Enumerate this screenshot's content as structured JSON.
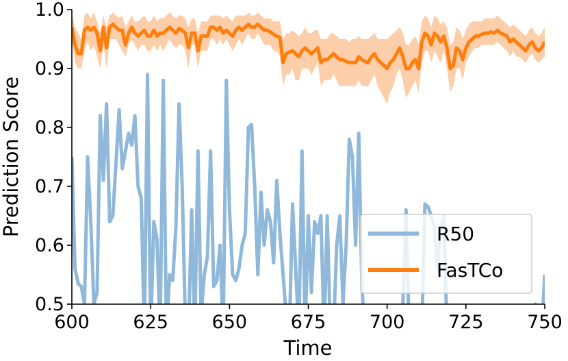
{
  "chart_data": {
    "type": "line",
    "title": "",
    "xlabel": "Time",
    "ylabel": "Prediction Score",
    "xlim": [
      600,
      750
    ],
    "ylim": [
      0.5,
      1.0
    ],
    "xticks": [
      600,
      625,
      650,
      675,
      700,
      725,
      750
    ],
    "yticks": [
      0.5,
      0.6,
      0.7,
      0.8,
      0.9,
      1.0
    ],
    "xtick_labels": [
      "600",
      "625",
      "650",
      "675",
      "700",
      "725",
      "750"
    ],
    "ytick_labels": [
      "0.5",
      "0.6",
      "0.7",
      "0.8",
      "0.9",
      "1.0"
    ],
    "grid": false,
    "legend_position": "lower-right",
    "series": [
      {
        "name": "R50",
        "color": "#8fb8da",
        "x": [
          600,
          601,
          602,
          603,
          604,
          605,
          606,
          607,
          608,
          609,
          610,
          611,
          612,
          613,
          614,
          615,
          616,
          617,
          618,
          619,
          620,
          621,
          622,
          623,
          624,
          625,
          626,
          627,
          628,
          629,
          630,
          631,
          632,
          633,
          634,
          635,
          636,
          637,
          638,
          639,
          640,
          641,
          642,
          643,
          644,
          645,
          646,
          647,
          648,
          649,
          650,
          651,
          652,
          653,
          654,
          655,
          656,
          657,
          658,
          659,
          660,
          661,
          662,
          663,
          664,
          665,
          666,
          667,
          668,
          669,
          670,
          671,
          672,
          673,
          674,
          675,
          676,
          677,
          678,
          679,
          680,
          681,
          682,
          683,
          684,
          685,
          686,
          687,
          688,
          689,
          690,
          691,
          692,
          693,
          694,
          695,
          696,
          697,
          698,
          699,
          700,
          701,
          702,
          703,
          704,
          705,
          706,
          707,
          708,
          709,
          710,
          711,
          712,
          713,
          714,
          715,
          716,
          717,
          718,
          719,
          720,
          721,
          722,
          723,
          724,
          725,
          726,
          727,
          728,
          729,
          730,
          731,
          732,
          733,
          734,
          735,
          736,
          737,
          738,
          739,
          740,
          741,
          742,
          743,
          744,
          745,
          746,
          747,
          748,
          749,
          750
        ],
        "values": [
          0.75,
          0.56,
          0.535,
          0.53,
          0.5,
          0.75,
          0.64,
          0.5,
          0.52,
          0.82,
          0.71,
          0.84,
          0.64,
          0.65,
          0.74,
          0.83,
          0.73,
          0.76,
          0.79,
          0.77,
          0.82,
          0.7,
          0.68,
          0.45,
          0.89,
          0.45,
          0.64,
          0.61,
          0.45,
          0.88,
          0.45,
          0.55,
          0.54,
          0.63,
          0.84,
          0.7,
          0.47,
          0.45,
          0.66,
          0.45,
          0.76,
          0.48,
          0.55,
          0.58,
          0.76,
          0.53,
          0.54,
          0.6,
          0.45,
          0.88,
          0.66,
          0.55,
          0.54,
          0.56,
          0.6,
          0.62,
          0.8,
          0.805,
          0.7,
          0.55,
          0.69,
          0.6,
          0.66,
          0.64,
          0.57,
          0.71,
          0.62,
          0.55,
          0.48,
          0.45,
          0.67,
          0.56,
          0.45,
          0.76,
          0.45,
          0.65,
          0.52,
          0.64,
          0.62,
          0.65,
          0.45,
          0.65,
          0.45,
          0.45,
          0.6,
          0.65,
          0.5,
          0.6,
          0.78,
          0.75,
          0.6,
          0.79,
          0.53,
          0.45,
          0.45,
          0.45,
          0.45,
          0.45,
          0.45,
          0.45,
          0.45,
          0.45,
          0.45,
          0.45,
          0.45,
          0.5,
          0.66,
          0.45,
          0.45,
          0.45,
          0.45,
          0.45,
          0.67,
          0.665,
          0.65,
          0.63,
          0.56,
          0.63,
          0.65,
          0.45,
          0.45,
          0.45,
          0.45,
          0.45,
          0.45,
          0.45,
          0.45,
          0.45,
          0.45,
          0.45,
          0.45,
          0.45,
          0.45,
          0.45,
          0.45,
          0.45,
          0.45,
          0.45,
          0.45,
          0.45,
          0.45,
          0.45,
          0.45,
          0.45,
          0.45,
          0.45,
          0.45,
          0.5,
          0.45,
          0.45,
          0.55
        ]
      },
      {
        "name": "FasTCo",
        "color": "#ff7f0e",
        "band_color": "#fcc59a",
        "x": [
          600,
          601,
          602,
          603,
          604,
          605,
          606,
          607,
          608,
          609,
          610,
          611,
          612,
          613,
          614,
          615,
          616,
          617,
          618,
          619,
          620,
          621,
          622,
          623,
          624,
          625,
          626,
          627,
          628,
          629,
          630,
          631,
          632,
          633,
          634,
          635,
          636,
          637,
          638,
          639,
          640,
          641,
          642,
          643,
          644,
          645,
          646,
          647,
          648,
          649,
          650,
          651,
          652,
          653,
          654,
          655,
          656,
          657,
          658,
          659,
          660,
          661,
          662,
          663,
          664,
          665,
          666,
          667,
          668,
          669,
          670,
          671,
          672,
          673,
          674,
          675,
          676,
          677,
          678,
          679,
          680,
          681,
          682,
          683,
          684,
          685,
          686,
          687,
          688,
          689,
          690,
          691,
          692,
          693,
          694,
          695,
          696,
          697,
          698,
          699,
          700,
          701,
          702,
          703,
          704,
          705,
          706,
          707,
          708,
          709,
          710,
          711,
          712,
          713,
          714,
          715,
          716,
          717,
          718,
          719,
          720,
          721,
          722,
          723,
          724,
          725,
          726,
          727,
          728,
          729,
          730,
          731,
          732,
          733,
          734,
          735,
          736,
          737,
          738,
          739,
          740,
          741,
          742,
          743,
          744,
          745,
          746,
          747,
          748,
          749,
          750
        ],
        "values": [
          0.97,
          0.94,
          0.925,
          0.925,
          0.965,
          0.97,
          0.965,
          0.97,
          0.96,
          0.93,
          0.97,
          0.935,
          0.97,
          0.975,
          0.97,
          0.965,
          0.965,
          0.94,
          0.96,
          0.97,
          0.96,
          0.955,
          0.96,
          0.965,
          0.955,
          0.955,
          0.965,
          0.955,
          0.96,
          0.96,
          0.965,
          0.97,
          0.965,
          0.96,
          0.968,
          0.965,
          0.96,
          0.935,
          0.96,
          0.96,
          0.93,
          0.955,
          0.955,
          0.955,
          0.97,
          0.97,
          0.965,
          0.97,
          0.96,
          0.965,
          0.96,
          0.955,
          0.965,
          0.97,
          0.965,
          0.97,
          0.975,
          0.97,
          0.97,
          0.975,
          0.97,
          0.965,
          0.965,
          0.962,
          0.958,
          0.955,
          0.953,
          0.91,
          0.925,
          0.928,
          0.93,
          0.925,
          0.92,
          0.93,
          0.935,
          0.93,
          0.925,
          0.93,
          0.935,
          0.91,
          0.915,
          0.915,
          0.92,
          0.925,
          0.92,
          0.915,
          0.915,
          0.912,
          0.91,
          0.91,
          0.91,
          0.92,
          0.915,
          0.912,
          0.91,
          0.92,
          0.925,
          0.915,
          0.91,
          0.905,
          0.9,
          0.91,
          0.915,
          0.925,
          0.935,
          0.92,
          0.9,
          0.9,
          0.91,
          0.915,
          0.9,
          0.945,
          0.96,
          0.955,
          0.94,
          0.96,
          0.955,
          0.945,
          0.955,
          0.935,
          0.9,
          0.905,
          0.935,
          0.93,
          0.915,
          0.935,
          0.945,
          0.95,
          0.955,
          0.955,
          0.958,
          0.96,
          0.96,
          0.962,
          0.96,
          0.965,
          0.96,
          0.958,
          0.955,
          0.945,
          0.95,
          0.945,
          0.94,
          0.935,
          0.93,
          0.94,
          0.945,
          0.935,
          0.93,
          0.935,
          0.945
        ],
        "lower": [
          0.95,
          0.91,
          0.9,
          0.9,
          0.93,
          0.945,
          0.93,
          0.94,
          0.92,
          0.9,
          0.94,
          0.9,
          0.95,
          0.95,
          0.95,
          0.94,
          0.93,
          0.92,
          0.94,
          0.95,
          0.94,
          0.93,
          0.94,
          0.94,
          0.93,
          0.93,
          0.94,
          0.93,
          0.94,
          0.93,
          0.94,
          0.95,
          0.94,
          0.935,
          0.94,
          0.94,
          0.93,
          0.9,
          0.94,
          0.94,
          0.9,
          0.93,
          0.93,
          0.93,
          0.95,
          0.95,
          0.94,
          0.95,
          0.94,
          0.95,
          0.94,
          0.93,
          0.94,
          0.95,
          0.94,
          0.95,
          0.96,
          0.95,
          0.95,
          0.96,
          0.95,
          0.94,
          0.94,
          0.94,
          0.93,
          0.93,
          0.92,
          0.87,
          0.89,
          0.89,
          0.9,
          0.88,
          0.88,
          0.9,
          0.9,
          0.9,
          0.89,
          0.9,
          0.91,
          0.87,
          0.88,
          0.88,
          0.88,
          0.89,
          0.88,
          0.87,
          0.87,
          0.87,
          0.87,
          0.87,
          0.87,
          0.88,
          0.87,
          0.87,
          0.87,
          0.88,
          0.89,
          0.87,
          0.86,
          0.85,
          0.84,
          0.86,
          0.87,
          0.89,
          0.9,
          0.88,
          0.85,
          0.86,
          0.87,
          0.88,
          0.86,
          0.91,
          0.93,
          0.93,
          0.91,
          0.93,
          0.92,
          0.91,
          0.93,
          0.9,
          0.86,
          0.87,
          0.9,
          0.9,
          0.88,
          0.91,
          0.92,
          0.93,
          0.935,
          0.935,
          0.94,
          0.94,
          0.94,
          0.94,
          0.94,
          0.945,
          0.94,
          0.935,
          0.93,
          0.92,
          0.93,
          0.92,
          0.92,
          0.915,
          0.91,
          0.92,
          0.925,
          0.915,
          0.91,
          0.915,
          0.92
        ],
        "upper": [
          0.995,
          0.97,
          0.96,
          0.95,
          0.99,
          0.995,
          0.985,
          0.995,
          0.98,
          0.96,
          0.99,
          0.97,
          0.99,
          0.995,
          0.99,
          0.985,
          0.99,
          0.97,
          0.98,
          0.99,
          0.98,
          0.98,
          0.985,
          0.99,
          0.98,
          0.98,
          0.99,
          0.98,
          0.985,
          0.985,
          0.99,
          0.995,
          0.99,
          0.985,
          0.99,
          0.99,
          0.985,
          0.97,
          0.985,
          0.985,
          0.96,
          0.98,
          0.98,
          0.98,
          0.99,
          0.99,
          0.99,
          0.99,
          0.985,
          0.99,
          0.985,
          0.98,
          0.99,
          0.99,
          0.99,
          0.99,
          0.995,
          0.99,
          0.99,
          0.995,
          0.99,
          0.985,
          0.985,
          0.985,
          0.98,
          0.98,
          0.98,
          0.95,
          0.96,
          0.96,
          0.965,
          0.96,
          0.955,
          0.96,
          0.97,
          0.96,
          0.96,
          0.965,
          0.965,
          0.95,
          0.95,
          0.95,
          0.96,
          0.96,
          0.955,
          0.95,
          0.95,
          0.95,
          0.945,
          0.95,
          0.95,
          0.955,
          0.95,
          0.95,
          0.95,
          0.955,
          0.96,
          0.95,
          0.95,
          0.95,
          0.95,
          0.955,
          0.96,
          0.965,
          0.97,
          0.96,
          0.94,
          0.94,
          0.95,
          0.955,
          0.94,
          0.98,
          0.99,
          0.985,
          0.97,
          0.99,
          0.985,
          0.975,
          0.98,
          0.97,
          0.94,
          0.945,
          0.97,
          0.965,
          0.95,
          0.965,
          0.975,
          0.98,
          0.98,
          0.98,
          0.98,
          0.985,
          0.985,
          0.985,
          0.985,
          0.99,
          0.985,
          0.98,
          0.975,
          0.97,
          0.975,
          0.97,
          0.965,
          0.96,
          0.955,
          0.965,
          0.97,
          0.96,
          0.955,
          0.96,
          0.97
        ]
      }
    ]
  }
}
